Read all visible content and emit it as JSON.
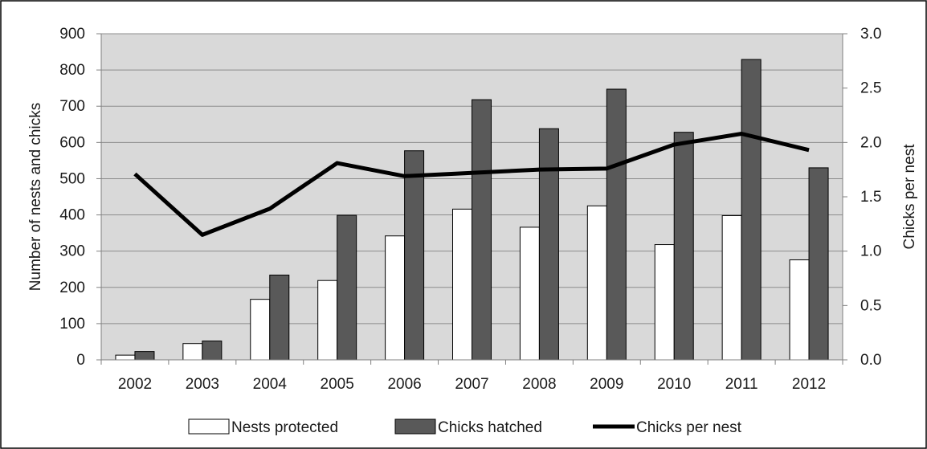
{
  "chart_data": {
    "type": "bar",
    "categories": [
      "2002",
      "2003",
      "2004",
      "2005",
      "2006",
      "2007",
      "2008",
      "2009",
      "2010",
      "2011",
      "2012"
    ],
    "series": [
      {
        "name": "Nests protected",
        "kind": "bar",
        "axis": "left",
        "color": "#ffffff",
        "values": [
          13,
          45,
          167,
          219,
          342,
          416,
          366,
          425,
          318,
          398,
          276
        ]
      },
      {
        "name": "Chicks hatched",
        "kind": "bar",
        "axis": "left",
        "color": "#595959",
        "values": [
          23,
          52,
          234,
          399,
          577,
          718,
          638,
          747,
          628,
          829,
          530
        ]
      },
      {
        "name": "Chicks per nest",
        "kind": "line",
        "axis": "right",
        "color": "#000000",
        "values": [
          1.71,
          1.15,
          1.39,
          1.81,
          1.69,
          1.72,
          1.75,
          1.76,
          1.98,
          2.08,
          1.93
        ]
      }
    ],
    "ylabel": "Number of nests and chicks",
    "y2label": "Chicks per nest",
    "ylim": [
      0,
      900
    ],
    "y2lim": [
      0,
      3.0
    ],
    "yticks": [
      "0",
      "100",
      "200",
      "300",
      "400",
      "500",
      "600",
      "700",
      "800",
      "900"
    ],
    "y2ticks": [
      "0.0",
      "0.5",
      "1.0",
      "1.5",
      "2.0",
      "2.5",
      "3.0"
    ],
    "grid": true,
    "legend_position": "bottom"
  }
}
